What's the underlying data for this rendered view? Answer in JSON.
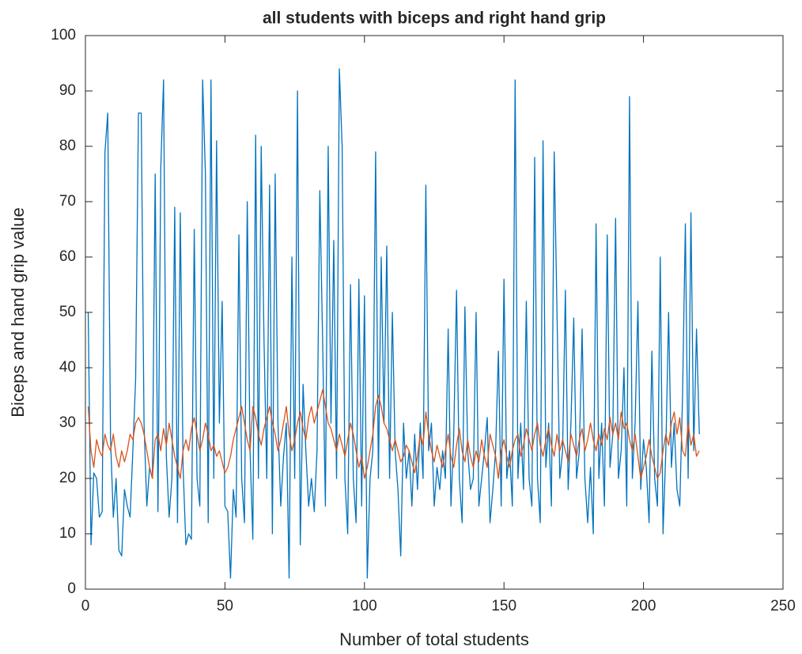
{
  "chart_data": {
    "type": "line",
    "title": "all students with biceps and right hand grip",
    "xlabel": "Number of total students",
    "ylabel": "Biceps and hand grip value",
    "xlim": [
      0,
      250
    ],
    "xticks": [
      0,
      50,
      100,
      150,
      200,
      250
    ],
    "ylim": [
      0,
      100
    ],
    "yticks": [
      0,
      10,
      20,
      30,
      40,
      50,
      60,
      70,
      80,
      90,
      100
    ],
    "grid": false,
    "box": true,
    "x": [
      1,
      2,
      3,
      4,
      5,
      6,
      7,
      8,
      9,
      10,
      11,
      12,
      13,
      14,
      15,
      16,
      17,
      18,
      19,
      20,
      21,
      22,
      23,
      24,
      25,
      26,
      27,
      28,
      29,
      30,
      31,
      32,
      33,
      34,
      35,
      36,
      37,
      38,
      39,
      40,
      41,
      42,
      43,
      44,
      45,
      46,
      47,
      48,
      49,
      50,
      51,
      52,
      53,
      54,
      55,
      56,
      57,
      58,
      59,
      60,
      61,
      62,
      63,
      64,
      65,
      66,
      67,
      68,
      69,
      70,
      71,
      72,
      73,
      74,
      75,
      76,
      77,
      78,
      79,
      80,
      81,
      82,
      83,
      84,
      85,
      86,
      87,
      88,
      89,
      90,
      91,
      92,
      93,
      94,
      95,
      96,
      97,
      98,
      99,
      100,
      101,
      102,
      103,
      104,
      105,
      106,
      107,
      108,
      109,
      110,
      111,
      112,
      113,
      114,
      115,
      116,
      117,
      118,
      119,
      120,
      121,
      122,
      123,
      124,
      125,
      126,
      127,
      128,
      129,
      130,
      131,
      132,
      133,
      134,
      135,
      136,
      137,
      138,
      139,
      140,
      141,
      142,
      143,
      144,
      145,
      146,
      147,
      148,
      149,
      150,
      151,
      152,
      153,
      154,
      155,
      156,
      157,
      158,
      159,
      160,
      161,
      162,
      163,
      164,
      165,
      166,
      167,
      168,
      169,
      170,
      171,
      172,
      173,
      174,
      175,
      176,
      177,
      178,
      179,
      180,
      181,
      182,
      183,
      184,
      185,
      186,
      187,
      188,
      189,
      190,
      191,
      192,
      193,
      194,
      195,
      196,
      197,
      198,
      199,
      200,
      201,
      202,
      203,
      204,
      205,
      206,
      207,
      208,
      209,
      210,
      211,
      212,
      213,
      214,
      215,
      216,
      217,
      218,
      219,
      220
    ],
    "series": [
      {
        "color": "#0072bd",
        "values": [
          50,
          8,
          21,
          20,
          13,
          14,
          79,
          86,
          27,
          13,
          20,
          7,
          6,
          18,
          15,
          13,
          25,
          38,
          86,
          86,
          30,
          15,
          22,
          20,
          75,
          14,
          76,
          92,
          24,
          13,
          20,
          69,
          12,
          68,
          22,
          8,
          10,
          9,
          65,
          20,
          15,
          92,
          75,
          12,
          92,
          20,
          81,
          30,
          52,
          15,
          14,
          2,
          18,
          13,
          64,
          20,
          12,
          70,
          25,
          9,
          82,
          20,
          80,
          45,
          20,
          73,
          10,
          75,
          30,
          15,
          24,
          30,
          2,
          60,
          20,
          90,
          8,
          37,
          25,
          15,
          20,
          14,
          25,
          72,
          45,
          15,
          80,
          30,
          63,
          20,
          94,
          80,
          20,
          10,
          55,
          20,
          12,
          56,
          15,
          53,
          2,
          20,
          25,
          79,
          20,
          60,
          30,
          62,
          20,
          50,
          25,
          18,
          6,
          30,
          20,
          25,
          15,
          28,
          18,
          30,
          20,
          73,
          25,
          30,
          15,
          22,
          18,
          25,
          20,
          47,
          15,
          28,
          54,
          20,
          12,
          51,
          25,
          18,
          20,
          50,
          15,
          20,
          25,
          31,
          12,
          18,
          25,
          43,
          15,
          56,
          20,
          25,
          15,
          92,
          20,
          30,
          18,
          52,
          20,
          15,
          78,
          20,
          12,
          81,
          22,
          30,
          15,
          79,
          50,
          20,
          25,
          54,
          18,
          30,
          49,
          20,
          25,
          47,
          20,
          12,
          22,
          10,
          66,
          20,
          30,
          15,
          64,
          22,
          28,
          67,
          20,
          25,
          40,
          15,
          89,
          20,
          30,
          52,
          18,
          27,
          22,
          12,
          43,
          20,
          15,
          60,
          10,
          25,
          50,
          22,
          30,
          18,
          15,
          35,
          66,
          20,
          68,
          25,
          47,
          28
        ]
      },
      {
        "color": "#d95319",
        "values": [
          33,
          25,
          22,
          27,
          25,
          24,
          28,
          26,
          25,
          28,
          24,
          22,
          25,
          23,
          25,
          28,
          27,
          30,
          31,
          30,
          28,
          25,
          22,
          20,
          27,
          28,
          25,
          29,
          26,
          30,
          27,
          24,
          22,
          20,
          25,
          27,
          25,
          29,
          31,
          28,
          25,
          27,
          30,
          28,
          25,
          26,
          24,
          25,
          23,
          21,
          22,
          24,
          27,
          29,
          31,
          33,
          30,
          27,
          25,
          33,
          31,
          28,
          26,
          29,
          31,
          33,
          30,
          28,
          25,
          27,
          30,
          33,
          28,
          25,
          27,
          30,
          32,
          29,
          27,
          31,
          33,
          30,
          32,
          34,
          36,
          33,
          30,
          29,
          27,
          25,
          28,
          26,
          24,
          27,
          30,
          28,
          25,
          22,
          24,
          20,
          22,
          25,
          28,
          33,
          35,
          33,
          30,
          29,
          27,
          25,
          27,
          25,
          23,
          24,
          26,
          25,
          23,
          21,
          24,
          28,
          26,
          32,
          28,
          25,
          23,
          26,
          24,
          22,
          25,
          28,
          24,
          22,
          26,
          29,
          25,
          23,
          27,
          24,
          22,
          25,
          23,
          27,
          24,
          22,
          28,
          26,
          24,
          20,
          25,
          27,
          24,
          22,
          25,
          27,
          28,
          24,
          26,
          29,
          27,
          25,
          28,
          30,
          26,
          24,
          27,
          29,
          26,
          24,
          28,
          25,
          27,
          25,
          23,
          28,
          26,
          24,
          27,
          29,
          25,
          27,
          30,
          27,
          25,
          28,
          26,
          29,
          27,
          31,
          28,
          30,
          27,
          32,
          29,
          30,
          27,
          25,
          28,
          24,
          20,
          22,
          24,
          27,
          24,
          22,
          20,
          21,
          25,
          28,
          26,
          30,
          32,
          28,
          31,
          25,
          24,
          30,
          26,
          28,
          24,
          25
        ]
      }
    ]
  }
}
